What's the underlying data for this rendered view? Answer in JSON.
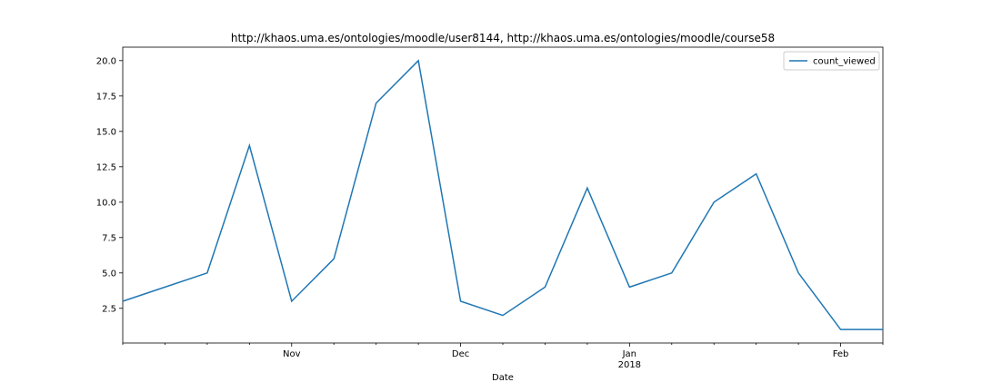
{
  "chart_data": {
    "type": "line",
    "title": "http://khaos.uma.es/ontologies/moodle/user8144, http://khaos.uma.es/ontologies/moodle/course58",
    "x_label": "Date",
    "categories": [
      null,
      null,
      null,
      null,
      "Nov",
      null,
      null,
      null,
      "Dec",
      null,
      null,
      null,
      "Jan\n2018",
      null,
      null,
      null,
      null,
      "Feb",
      null
    ],
    "series": [
      {
        "name": "count_viewed",
        "color": "#1f77b4",
        "values": [
          3,
          4,
          5,
          14,
          3,
          6,
          17,
          20,
          3,
          2,
          4,
          11,
          4,
          5,
          10,
          12,
          5,
          1,
          1
        ]
      }
    ],
    "ylim": [
      0.05,
      20.95
    ],
    "yticks": [
      2.5,
      {
        "value": 5,
        "label": "5.0"
      },
      7.5,
      {
        "value": 10,
        "label": "10.0"
      },
      12.5,
      {
        "value": 15,
        "label": "15.0"
      },
      17.5,
      {
        "value": 20,
        "label": "20.0"
      }
    ],
    "grid": false,
    "legend": "upper right"
  }
}
